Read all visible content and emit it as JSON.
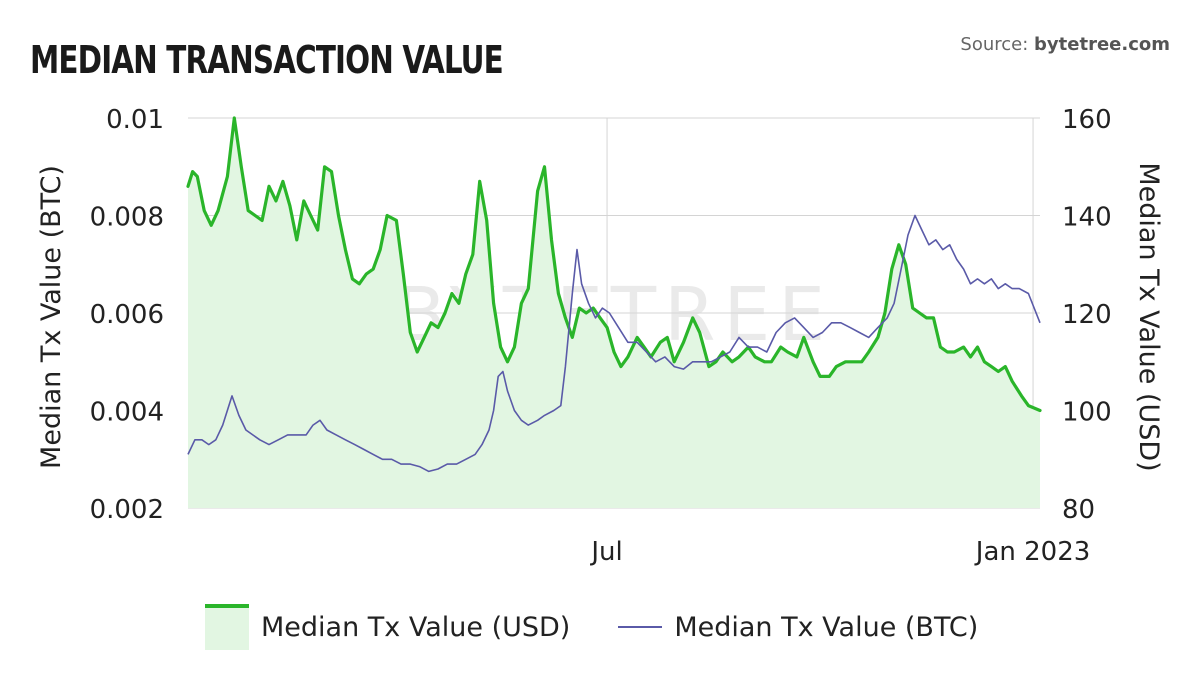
{
  "header": {
    "title": "MEDIAN TRANSACTION VALUE",
    "source_prefix": "Source:",
    "source_name": "bytetree.com"
  },
  "watermark": "BYTETREE",
  "legend": {
    "usd_label": "Median Tx Value (USD)",
    "btc_label": "Median Tx Value (BTC)"
  },
  "colors": {
    "usd_line": "#2ab52a",
    "usd_fill": "#e2f6e2",
    "btc_line": "#5a5aa8",
    "grid": "#d4d4d4",
    "axis_text": "#222222"
  },
  "chart_data": {
    "type": "line",
    "title": "MEDIAN TRANSACTION VALUE",
    "x_range": [
      "2022-01-01",
      "2023-01-04"
    ],
    "x_ticks": [
      {
        "date": "2022-07-01",
        "label": "Jul"
      },
      {
        "date": "2023-01-01",
        "label": "Jan 2023"
      }
    ],
    "y_left": {
      "label": "Median Tx Value (BTC)",
      "range": [
        0.002,
        0.01
      ],
      "ticks": [
        0.002,
        0.004,
        0.006,
        0.008,
        0.01
      ],
      "tick_labels": [
        "0.002",
        "0.004",
        "0.006",
        "0.008",
        "0.01"
      ]
    },
    "y_right": {
      "label": "Median Tx Value (USD)",
      "range": [
        80,
        160
      ],
      "ticks": [
        80,
        100,
        120,
        140,
        160
      ],
      "tick_labels": [
        "80",
        "100",
        "120",
        "140",
        "160"
      ]
    },
    "grid": true,
    "legend_position": "bottom",
    "series": [
      {
        "name": "Median Tx Value (USD)",
        "axis": "right",
        "style": "area",
        "points": [
          [
            "2022-01-01",
            146
          ],
          [
            "2022-01-03",
            149
          ],
          [
            "2022-01-05",
            148
          ],
          [
            "2022-01-08",
            141
          ],
          [
            "2022-01-11",
            138
          ],
          [
            "2022-01-14",
            141
          ],
          [
            "2022-01-18",
            148
          ],
          [
            "2022-01-21",
            160
          ],
          [
            "2022-01-24",
            150
          ],
          [
            "2022-01-27",
            141
          ],
          [
            "2022-01-30",
            140
          ],
          [
            "2022-02-02",
            139
          ],
          [
            "2022-02-05",
            146
          ],
          [
            "2022-02-08",
            143
          ],
          [
            "2022-02-11",
            147
          ],
          [
            "2022-02-14",
            142
          ],
          [
            "2022-02-17",
            135
          ],
          [
            "2022-02-20",
            143
          ],
          [
            "2022-02-23",
            140
          ],
          [
            "2022-02-26",
            137
          ],
          [
            "2022-03-01",
            150
          ],
          [
            "2022-03-04",
            149
          ],
          [
            "2022-03-07",
            140
          ],
          [
            "2022-03-10",
            133
          ],
          [
            "2022-03-13",
            127
          ],
          [
            "2022-03-16",
            126
          ],
          [
            "2022-03-19",
            128
          ],
          [
            "2022-03-22",
            129
          ],
          [
            "2022-03-25",
            133
          ],
          [
            "2022-03-28",
            140
          ],
          [
            "2022-04-01",
            139
          ],
          [
            "2022-04-04",
            128
          ],
          [
            "2022-04-07",
            116
          ],
          [
            "2022-04-10",
            112
          ],
          [
            "2022-04-13",
            115
          ],
          [
            "2022-04-16",
            118
          ],
          [
            "2022-04-19",
            117
          ],
          [
            "2022-04-22",
            120
          ],
          [
            "2022-04-25",
            124
          ],
          [
            "2022-04-28",
            122
          ],
          [
            "2022-05-01",
            128
          ],
          [
            "2022-05-04",
            132
          ],
          [
            "2022-05-07",
            147
          ],
          [
            "2022-05-10",
            139
          ],
          [
            "2022-05-13",
            122
          ],
          [
            "2022-05-16",
            113
          ],
          [
            "2022-05-19",
            110
          ],
          [
            "2022-05-22",
            113
          ],
          [
            "2022-05-25",
            122
          ],
          [
            "2022-05-28",
            125
          ],
          [
            "2022-06-01",
            145
          ],
          [
            "2022-06-04",
            150
          ],
          [
            "2022-06-07",
            135
          ],
          [
            "2022-06-10",
            124
          ],
          [
            "2022-06-13",
            119
          ],
          [
            "2022-06-16",
            115
          ],
          [
            "2022-06-19",
            121
          ],
          [
            "2022-06-22",
            120
          ],
          [
            "2022-06-25",
            121
          ],
          [
            "2022-06-28",
            119
          ],
          [
            "2022-07-01",
            117
          ],
          [
            "2022-07-04",
            112
          ],
          [
            "2022-07-07",
            109
          ],
          [
            "2022-07-10",
            111
          ],
          [
            "2022-07-14",
            115
          ],
          [
            "2022-07-17",
            113
          ],
          [
            "2022-07-20",
            111
          ],
          [
            "2022-07-24",
            114
          ],
          [
            "2022-07-27",
            115
          ],
          [
            "2022-07-30",
            110
          ],
          [
            "2022-08-03",
            114
          ],
          [
            "2022-08-07",
            119
          ],
          [
            "2022-08-10",
            116
          ],
          [
            "2022-08-14",
            109
          ],
          [
            "2022-08-17",
            110
          ],
          [
            "2022-08-20",
            112
          ],
          [
            "2022-08-24",
            110
          ],
          [
            "2022-08-27",
            111
          ],
          [
            "2022-08-31",
            113
          ],
          [
            "2022-09-03",
            111
          ],
          [
            "2022-09-07",
            110
          ],
          [
            "2022-09-10",
            110
          ],
          [
            "2022-09-14",
            113
          ],
          [
            "2022-09-17",
            112
          ],
          [
            "2022-09-21",
            111
          ],
          [
            "2022-09-24",
            115
          ],
          [
            "2022-09-28",
            110
          ],
          [
            "2022-10-01",
            107
          ],
          [
            "2022-10-05",
            107
          ],
          [
            "2022-10-08",
            109
          ],
          [
            "2022-10-12",
            110
          ],
          [
            "2022-10-15",
            110
          ],
          [
            "2022-10-19",
            110
          ],
          [
            "2022-10-22",
            112
          ],
          [
            "2022-10-26",
            115
          ],
          [
            "2022-10-29",
            120
          ],
          [
            "2022-11-01",
            129
          ],
          [
            "2022-11-04",
            134
          ],
          [
            "2022-11-07",
            130
          ],
          [
            "2022-11-10",
            121
          ],
          [
            "2022-11-13",
            120
          ],
          [
            "2022-11-16",
            119
          ],
          [
            "2022-11-19",
            119
          ],
          [
            "2022-11-22",
            113
          ],
          [
            "2022-11-25",
            112
          ],
          [
            "2022-11-28",
            112
          ],
          [
            "2022-12-02",
            113
          ],
          [
            "2022-12-05",
            111
          ],
          [
            "2022-12-08",
            113
          ],
          [
            "2022-12-11",
            110
          ],
          [
            "2022-12-14",
            109
          ],
          [
            "2022-12-17",
            108
          ],
          [
            "2022-12-20",
            109
          ],
          [
            "2022-12-23",
            106
          ],
          [
            "2022-12-27",
            103
          ],
          [
            "2022-12-30",
            101
          ],
          [
            "2023-01-04",
            100
          ]
        ]
      },
      {
        "name": "Median Tx Value (BTC)",
        "axis": "left",
        "style": "line",
        "points": [
          [
            "2022-01-01",
            0.0031
          ],
          [
            "2022-01-04",
            0.0034
          ],
          [
            "2022-01-07",
            0.0034
          ],
          [
            "2022-01-10",
            0.0033
          ],
          [
            "2022-01-13",
            0.0034
          ],
          [
            "2022-01-16",
            0.0037
          ],
          [
            "2022-01-20",
            0.0043
          ],
          [
            "2022-01-23",
            0.0039
          ],
          [
            "2022-01-26",
            0.0036
          ],
          [
            "2022-01-29",
            0.0035
          ],
          [
            "2022-02-01",
            0.0034
          ],
          [
            "2022-02-05",
            0.0033
          ],
          [
            "2022-02-09",
            0.0034
          ],
          [
            "2022-02-13",
            0.0035
          ],
          [
            "2022-02-17",
            0.0035
          ],
          [
            "2022-02-21",
            0.0035
          ],
          [
            "2022-02-24",
            0.0037
          ],
          [
            "2022-02-27",
            0.0038
          ],
          [
            "2022-03-02",
            0.0036
          ],
          [
            "2022-03-06",
            0.0035
          ],
          [
            "2022-03-10",
            0.0034
          ],
          [
            "2022-03-14",
            0.0033
          ],
          [
            "2022-03-18",
            0.0032
          ],
          [
            "2022-03-22",
            0.0031
          ],
          [
            "2022-03-26",
            0.003
          ],
          [
            "2022-03-30",
            0.003
          ],
          [
            "2022-04-03",
            0.0029
          ],
          [
            "2022-04-07",
            0.0029
          ],
          [
            "2022-04-11",
            0.00285
          ],
          [
            "2022-04-15",
            0.00275
          ],
          [
            "2022-04-19",
            0.0028
          ],
          [
            "2022-04-23",
            0.0029
          ],
          [
            "2022-04-27",
            0.0029
          ],
          [
            "2022-05-01",
            0.003
          ],
          [
            "2022-05-05",
            0.0031
          ],
          [
            "2022-05-08",
            0.0033
          ],
          [
            "2022-05-11",
            0.0036
          ],
          [
            "2022-05-13",
            0.004
          ],
          [
            "2022-05-15",
            0.0047
          ],
          [
            "2022-05-17",
            0.0048
          ],
          [
            "2022-05-19",
            0.0044
          ],
          [
            "2022-05-22",
            0.004
          ],
          [
            "2022-05-25",
            0.0038
          ],
          [
            "2022-05-28",
            0.0037
          ],
          [
            "2022-06-01",
            0.0038
          ],
          [
            "2022-06-04",
            0.0039
          ],
          [
            "2022-06-08",
            0.004
          ],
          [
            "2022-06-11",
            0.0041
          ],
          [
            "2022-06-13",
            0.0049
          ],
          [
            "2022-06-16",
            0.0064
          ],
          [
            "2022-06-18",
            0.0073
          ],
          [
            "2022-06-20",
            0.0066
          ],
          [
            "2022-06-23",
            0.0062
          ],
          [
            "2022-06-26",
            0.0059
          ],
          [
            "2022-06-29",
            0.0061
          ],
          [
            "2022-07-02",
            0.006
          ],
          [
            "2022-07-06",
            0.0057
          ],
          [
            "2022-07-10",
            0.0054
          ],
          [
            "2022-07-14",
            0.0054
          ],
          [
            "2022-07-18",
            0.0052
          ],
          [
            "2022-07-22",
            0.005
          ],
          [
            "2022-07-26",
            0.0051
          ],
          [
            "2022-07-30",
            0.0049
          ],
          [
            "2022-08-03",
            0.00485
          ],
          [
            "2022-08-07",
            0.005
          ],
          [
            "2022-08-11",
            0.005
          ],
          [
            "2022-08-15",
            0.005
          ],
          [
            "2022-08-19",
            0.0051
          ],
          [
            "2022-08-23",
            0.0052
          ],
          [
            "2022-08-27",
            0.0055
          ],
          [
            "2022-08-31",
            0.0053
          ],
          [
            "2022-09-04",
            0.0053
          ],
          [
            "2022-09-08",
            0.0052
          ],
          [
            "2022-09-12",
            0.0056
          ],
          [
            "2022-09-16",
            0.0058
          ],
          [
            "2022-09-20",
            0.0059
          ],
          [
            "2022-09-24",
            0.0057
          ],
          [
            "2022-09-28",
            0.0055
          ],
          [
            "2022-10-02",
            0.0056
          ],
          [
            "2022-10-06",
            0.0058
          ],
          [
            "2022-10-10",
            0.0058
          ],
          [
            "2022-10-14",
            0.0057
          ],
          [
            "2022-10-18",
            0.0056
          ],
          [
            "2022-10-22",
            0.0055
          ],
          [
            "2022-10-26",
            0.0057
          ],
          [
            "2022-10-30",
            0.0059
          ],
          [
            "2022-11-02",
            0.0062
          ],
          [
            "2022-11-05",
            0.0069
          ],
          [
            "2022-11-08",
            0.0076
          ],
          [
            "2022-11-11",
            0.008
          ],
          [
            "2022-11-14",
            0.0077
          ],
          [
            "2022-11-17",
            0.0074
          ],
          [
            "2022-11-20",
            0.0075
          ],
          [
            "2022-11-23",
            0.0073
          ],
          [
            "2022-11-26",
            0.0074
          ],
          [
            "2022-11-29",
            0.0071
          ],
          [
            "2022-12-02",
            0.0069
          ],
          [
            "2022-12-05",
            0.0066
          ],
          [
            "2022-12-08",
            0.0067
          ],
          [
            "2022-12-11",
            0.0066
          ],
          [
            "2022-12-14",
            0.0067
          ],
          [
            "2022-12-17",
            0.0065
          ],
          [
            "2022-12-20",
            0.0066
          ],
          [
            "2022-12-23",
            0.0065
          ],
          [
            "2022-12-26",
            0.0065
          ],
          [
            "2022-12-30",
            0.0064
          ],
          [
            "2023-01-04",
            0.0058
          ]
        ]
      }
    ]
  }
}
